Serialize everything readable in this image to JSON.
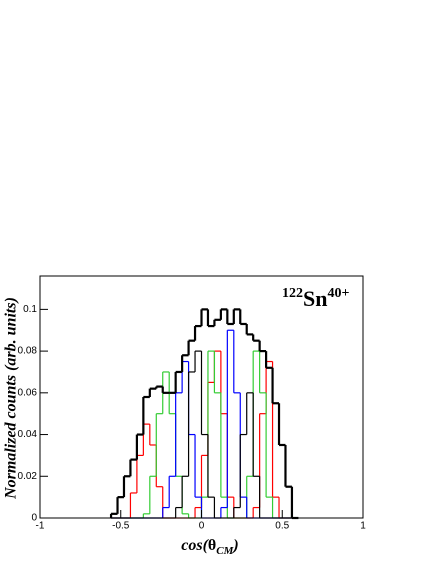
{
  "chart_data": {
    "type": "histogram",
    "ylabel": "Normalized counts (arb. units)",
    "xlabel": {
      "main": "cos(",
      "symbol": "θ",
      "sub": "CM",
      "end": ")"
    },
    "annotation": {
      "mass": "122",
      "element": "Sn",
      "charge": "40+"
    },
    "bins": [
      -0.56,
      -0.52,
      -0.48,
      -0.44,
      -0.4,
      -0.36,
      -0.32,
      -0.28,
      -0.24,
      -0.2,
      -0.16,
      -0.12,
      -0.08,
      -0.04,
      0,
      0.04,
      0.08,
      0.12,
      0.16,
      0.2,
      0.24,
      0.28,
      0.32,
      0.36,
      0.4,
      0.44,
      0.48,
      0.52,
      0.56,
      0.6
    ],
    "series": [
      {
        "color": "#ff0000",
        "line_width": 1.2,
        "values": [
          0,
          0,
          0,
          0.012,
          0.03,
          0.045,
          0.035,
          0.015,
          0,
          0,
          0,
          0,
          0,
          0.005,
          0.03,
          0.065,
          0.08,
          0.05,
          0.01,
          0,
          0,
          0,
          0.005,
          0.05,
          0.075,
          0.01,
          0,
          0,
          0
        ]
      },
      {
        "color": "#33cc33",
        "line_width": 1.2,
        "values": [
          0,
          0,
          0,
          0,
          0,
          0.002,
          0.02,
          0.05,
          0.07,
          0.05,
          0.02,
          0.002,
          0,
          0,
          0.01,
          0.08,
          0.06,
          0.01,
          0,
          0,
          0,
          0.02,
          0.08,
          0.06,
          0.01,
          0,
          0,
          0,
          0
        ]
      },
      {
        "color": "#0000ff",
        "line_width": 1.2,
        "values": [
          0,
          0,
          0,
          0,
          0,
          0,
          0,
          0,
          0.005,
          0.02,
          0.06,
          0.075,
          0.04,
          0.01,
          0,
          0,
          0,
          0.005,
          0.09,
          0.06,
          0.01,
          0,
          0,
          0,
          0,
          0,
          0,
          0,
          0
        ]
      },
      {
        "color": "#000000",
        "line_width": 1.2,
        "values": [
          0,
          0,
          0,
          0,
          0,
          0,
          0,
          0,
          0,
          0,
          0.005,
          0.02,
          0.07,
          0.08,
          0.04,
          0.01,
          0,
          0,
          0,
          0.005,
          0.04,
          0.06,
          0.02,
          0,
          0,
          0,
          0,
          0,
          0
        ]
      },
      {
        "color": "#000000",
        "line_width": 2.2,
        "values": [
          0.002,
          0.01,
          0.02,
          0.028,
          0.04,
          0.058,
          0.062,
          0.063,
          0.06,
          0.06,
          0.07,
          0.078,
          0.085,
          0.092,
          0.1,
          0.092,
          0.095,
          0.1,
          0.093,
          0.1,
          0.093,
          0.088,
          0.085,
          0.08,
          0.072,
          0.055,
          0.035,
          0.015,
          0
        ]
      }
    ],
    "xlim": [
      -1,
      1
    ],
    "xticks": [
      -1,
      -0.5,
      0,
      0.5,
      1
    ],
    "ylim": [
      0,
      0.116
    ],
    "yticks": [
      0,
      0.02,
      0.04,
      0.06,
      0.08,
      0.1
    ]
  }
}
